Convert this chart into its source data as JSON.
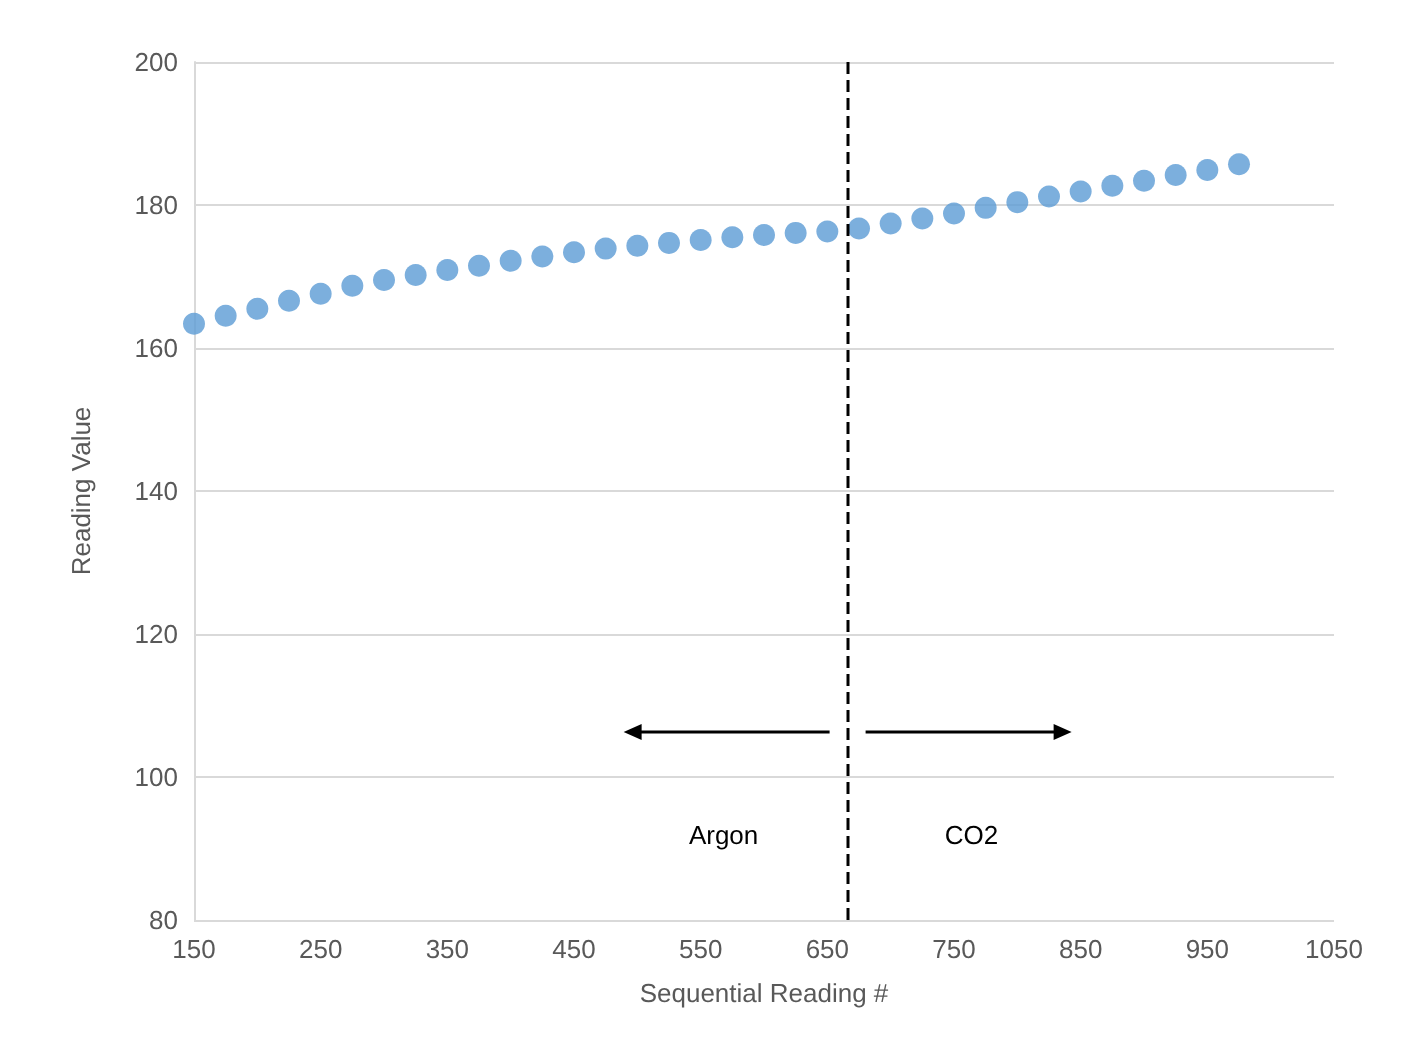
{
  "chart_data": {
    "type": "scatter",
    "xlabel": "Sequential Reading #",
    "ylabel": "Reading Value",
    "x": [
      150,
      175,
      200,
      225,
      250,
      275,
      300,
      325,
      350,
      375,
      400,
      425,
      450,
      475,
      500,
      525,
      550,
      575,
      600,
      625,
      650,
      675,
      700,
      725,
      750,
      775,
      800,
      825,
      850,
      875,
      900,
      925,
      950,
      975
    ],
    "series": [
      {
        "color": "#5b9bd5",
        "values": [
          163.4,
          164.5,
          165.5,
          166.6,
          167.6,
          168.7,
          169.5,
          170.2,
          170.9,
          171.5,
          172.2,
          172.8,
          173.4,
          173.9,
          174.3,
          174.7,
          175.1,
          175.5,
          175.8,
          176.1,
          176.3,
          176.7,
          177.4,
          178.1,
          178.8,
          179.6,
          180.4,
          181.2,
          181.9,
          182.7,
          183.4,
          184.2,
          184.9,
          185.7
        ]
      }
    ],
    "xlim": [
      150,
      1050
    ],
    "xticks": [
      150,
      250,
      350,
      450,
      550,
      650,
      750,
      850,
      950,
      1050
    ],
    "ylim": [
      80,
      200
    ],
    "yticks": [
      80,
      100,
      120,
      140,
      160,
      180,
      200
    ],
    "ref_lines": [
      {
        "axis": "x",
        "value": 666,
        "color": "#000000",
        "line_style": "dashed"
      }
    ],
    "annotations": [
      "Argon",
      "CO2"
    ],
    "grid": "y",
    "marker": "circle"
  }
}
